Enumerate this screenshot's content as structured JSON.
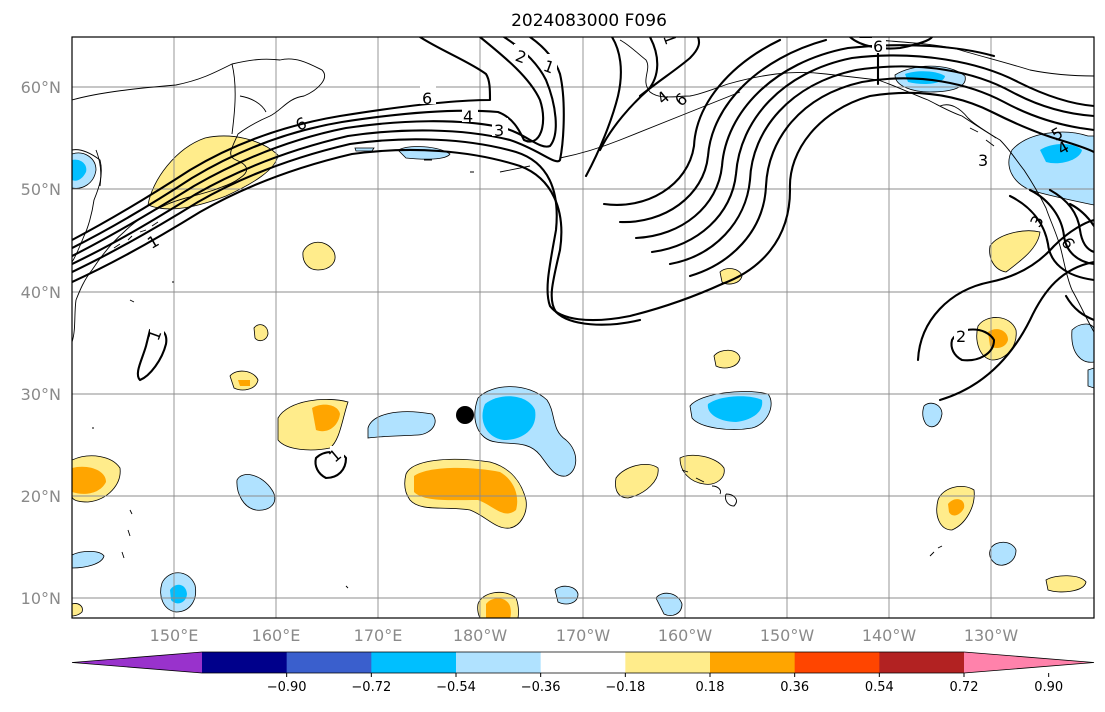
{
  "title": "2024083000 F096",
  "lat_labels": [
    "60°N",
    "50°N",
    "40°N",
    "30°N",
    "20°N",
    "10°N"
  ],
  "lon_labels": [
    "150°E",
    "160°E",
    "170°E",
    "180°W",
    "170°W",
    "160°W",
    "150°W",
    "140°W",
    "130°W"
  ],
  "colorbar": {
    "tick_labels": [
      "−0.90",
      "−0.72",
      "−0.54",
      "−0.36",
      "−0.18",
      "0.18",
      "0.36",
      "0.54",
      "0.72",
      "0.90"
    ],
    "colors": [
      "#9932cc",
      "#00008b",
      "#3a5fcd",
      "#00bfff",
      "#b0e2ff",
      "#ffffff",
      "#ffec8b",
      "#ffa500",
      "#ff4500",
      "#b22222",
      "#ff82ab"
    ]
  },
  "contour_labels": [
    "6",
    "4",
    "3",
    "6",
    "1",
    "2",
    "1",
    "4",
    "6",
    "1",
    "5",
    "4",
    "3",
    "3",
    "6",
    "6",
    "2",
    "1",
    "1"
  ],
  "colors": {
    "neg_weak": "#b0e2ff",
    "neg_mid": "#00bfff",
    "pos_weak": "#ffec8b",
    "pos_mid": "#ffa500",
    "marker": "#000000"
  }
}
